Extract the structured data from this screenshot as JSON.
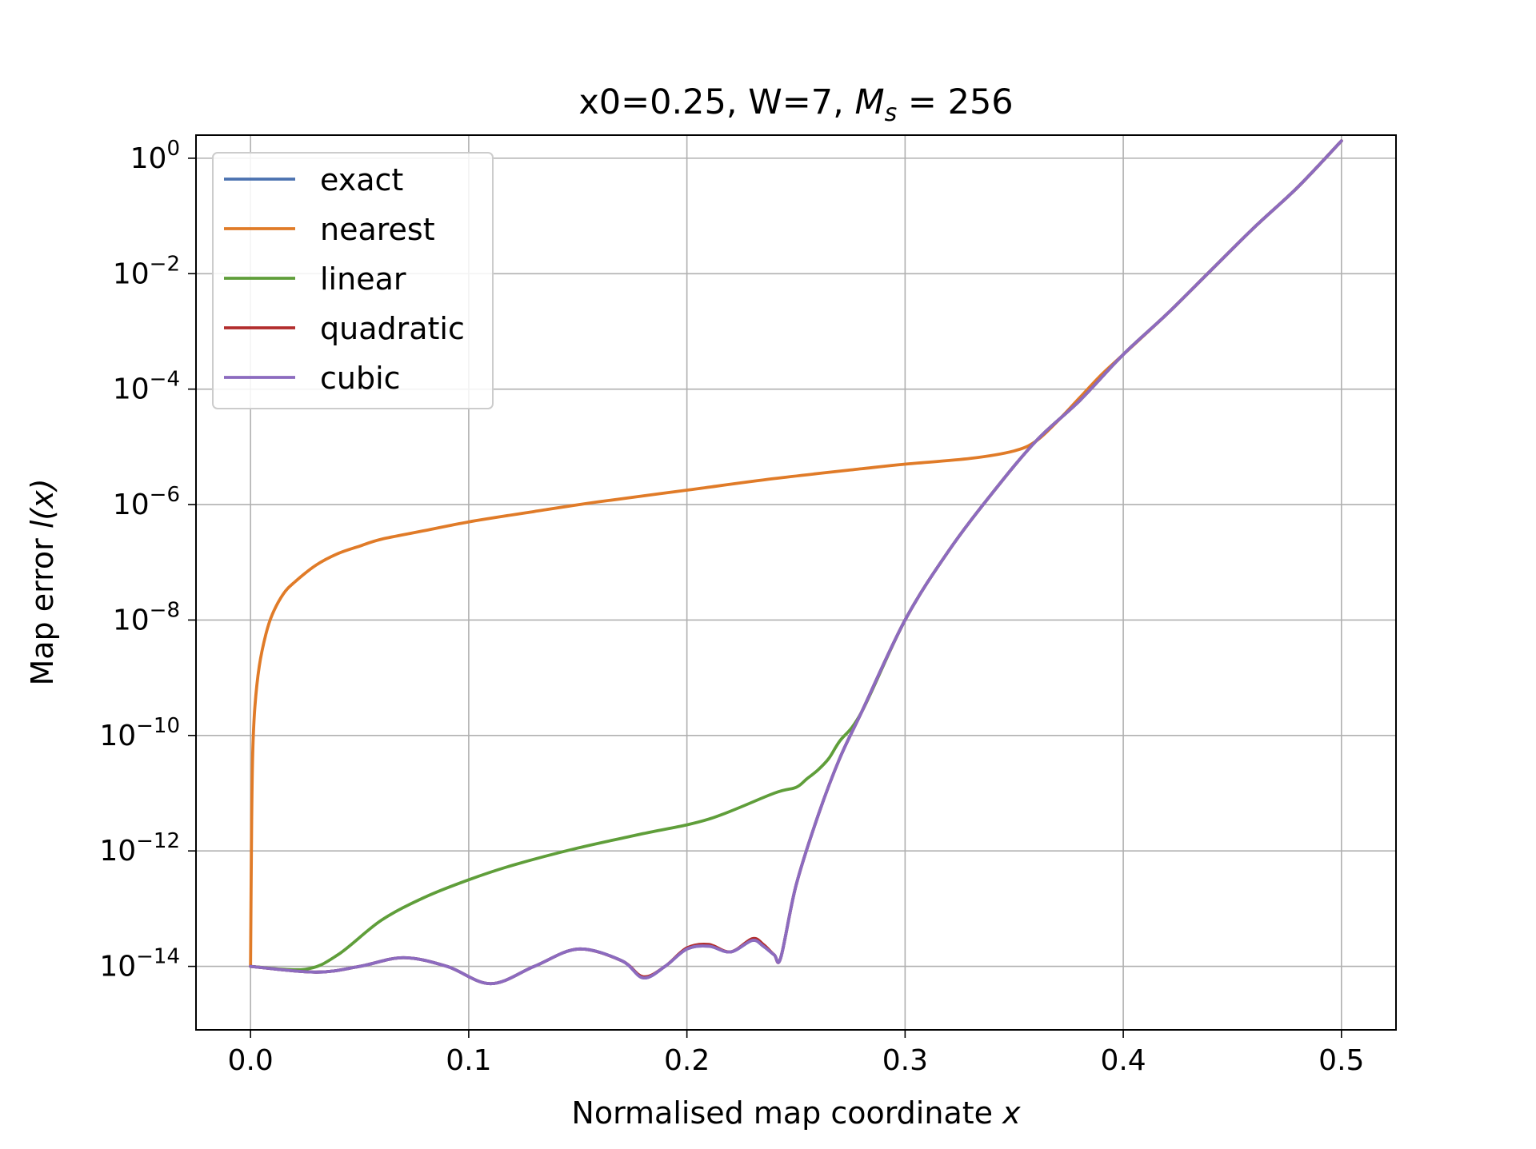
{
  "chart_data": {
    "type": "line",
    "title": {
      "prefix": "x0=0.25, W=7, ",
      "math_var": "M",
      "math_sub": "s",
      "math_rest": " = 256"
    },
    "xlabel": {
      "text": "Normalised map coordinate ",
      "math_var": "x"
    },
    "ylabel": {
      "text": "Map error ",
      "math_expr": "l(x)"
    },
    "xlim": [
      -0.025,
      0.525
    ],
    "ylim_log10": [
      -15.1,
      0.4
    ],
    "x_ticks": [
      {
        "value": 0.0,
        "label": "0.0"
      },
      {
        "value": 0.1,
        "label": "0.1"
      },
      {
        "value": 0.2,
        "label": "0.2"
      },
      {
        "value": 0.3,
        "label": "0.3"
      },
      {
        "value": 0.4,
        "label": "0.4"
      },
      {
        "value": 0.5,
        "label": "0.5"
      }
    ],
    "y_ticks": [
      {
        "exp": 0,
        "base": "10",
        "sup": "0"
      },
      {
        "exp": -2,
        "base": "10",
        "sup": "−2"
      },
      {
        "exp": -4,
        "base": "10",
        "sup": "−4"
      },
      {
        "exp": -6,
        "base": "10",
        "sup": "−6"
      },
      {
        "exp": -8,
        "base": "10",
        "sup": "−8"
      },
      {
        "exp": -10,
        "base": "10",
        "sup": "−10"
      },
      {
        "exp": -12,
        "base": "10",
        "sup": "−12"
      },
      {
        "exp": -14,
        "base": "10",
        "sup": "−14"
      }
    ],
    "grid": true,
    "legend_position": "top-left",
    "series": [
      {
        "name": "exact",
        "color": "#4c72b0",
        "x": [
          0.0,
          0.03,
          0.05,
          0.07,
          0.09,
          0.11,
          0.13,
          0.15,
          0.17,
          0.18,
          0.19,
          0.2,
          0.21,
          0.22,
          0.23,
          0.235,
          0.24,
          0.243,
          0.25,
          0.26,
          0.27,
          0.28,
          0.3,
          0.32,
          0.34,
          0.36,
          0.38,
          0.4,
          0.42,
          0.44,
          0.46,
          0.48,
          0.5
        ],
        "log10_y": [
          -14.0,
          -14.1,
          -14.0,
          -13.85,
          -14.0,
          -14.3,
          -14.0,
          -13.7,
          -13.9,
          -14.2,
          -14.0,
          -13.7,
          -13.65,
          -13.75,
          -13.55,
          -13.65,
          -13.8,
          -13.85,
          -12.6,
          -11.4,
          -10.4,
          -9.6,
          -8.0,
          -6.8,
          -5.8,
          -4.9,
          -4.2,
          -3.4,
          -2.7,
          -1.95,
          -1.2,
          -0.5,
          0.3
        ]
      },
      {
        "name": "nearest",
        "color": "#e07b28",
        "x": [
          0.0,
          0.0005,
          0.001,
          0.002,
          0.004,
          0.007,
          0.01,
          0.015,
          0.02,
          0.03,
          0.04,
          0.05,
          0.06,
          0.08,
          0.1,
          0.13,
          0.16,
          0.2,
          0.24,
          0.28,
          0.3,
          0.33,
          0.35,
          0.36,
          0.37,
          0.38,
          0.39,
          0.4,
          0.42,
          0.44,
          0.46,
          0.48,
          0.5
        ],
        "log10_y": [
          -14.0,
          -11.5,
          -10.3,
          -9.5,
          -8.8,
          -8.25,
          -7.9,
          -7.55,
          -7.35,
          -7.05,
          -6.85,
          -6.72,
          -6.6,
          -6.45,
          -6.3,
          -6.12,
          -5.95,
          -5.75,
          -5.55,
          -5.38,
          -5.3,
          -5.2,
          -5.07,
          -4.9,
          -4.55,
          -4.15,
          -3.75,
          -3.4,
          -2.7,
          -1.95,
          -1.2,
          -0.5,
          0.3
        ]
      },
      {
        "name": "linear",
        "color": "#5f9e3a",
        "x": [
          0.0,
          0.025,
          0.04,
          0.06,
          0.08,
          0.1,
          0.12,
          0.15,
          0.18,
          0.21,
          0.24,
          0.25,
          0.255,
          0.26,
          0.265,
          0.27,
          0.28,
          0.3,
          0.32,
          0.34,
          0.36,
          0.38,
          0.4,
          0.42,
          0.44,
          0.46,
          0.48,
          0.5
        ],
        "log10_y": [
          -14.0,
          -14.05,
          -13.8,
          -13.2,
          -12.8,
          -12.5,
          -12.25,
          -11.95,
          -11.7,
          -11.45,
          -11.0,
          -10.9,
          -10.75,
          -10.6,
          -10.4,
          -10.1,
          -9.6,
          -8.0,
          -6.8,
          -5.8,
          -4.9,
          -4.2,
          -3.4,
          -2.7,
          -1.95,
          -1.2,
          -0.5,
          0.3
        ]
      },
      {
        "name": "quadratic",
        "color": "#b22d2d",
        "x": [
          0.0,
          0.03,
          0.05,
          0.07,
          0.09,
          0.11,
          0.13,
          0.15,
          0.17,
          0.18,
          0.19,
          0.2,
          0.21,
          0.22,
          0.23,
          0.235,
          0.24,
          0.243,
          0.25,
          0.26,
          0.27,
          0.28,
          0.3,
          0.32,
          0.34,
          0.36,
          0.38,
          0.4,
          0.42,
          0.44,
          0.46,
          0.48,
          0.5
        ],
        "log10_y": [
          -14.0,
          -14.1,
          -14.0,
          -13.85,
          -14.0,
          -14.3,
          -14.0,
          -13.7,
          -13.9,
          -14.18,
          -14.0,
          -13.68,
          -13.62,
          -13.75,
          -13.52,
          -13.62,
          -13.8,
          -13.85,
          -12.6,
          -11.4,
          -10.4,
          -9.6,
          -8.0,
          -6.8,
          -5.8,
          -4.9,
          -4.2,
          -3.4,
          -2.7,
          -1.95,
          -1.2,
          -0.5,
          0.3
        ]
      },
      {
        "name": "cubic",
        "color": "#8c6bbf",
        "x": [
          0.0,
          0.03,
          0.05,
          0.07,
          0.09,
          0.11,
          0.13,
          0.15,
          0.17,
          0.18,
          0.19,
          0.2,
          0.21,
          0.22,
          0.23,
          0.235,
          0.24,
          0.243,
          0.25,
          0.26,
          0.27,
          0.28,
          0.3,
          0.32,
          0.34,
          0.36,
          0.38,
          0.4,
          0.42,
          0.44,
          0.46,
          0.48,
          0.5
        ],
        "log10_y": [
          -14.0,
          -14.1,
          -14.0,
          -13.85,
          -14.0,
          -14.3,
          -14.0,
          -13.7,
          -13.9,
          -14.2,
          -14.0,
          -13.7,
          -13.65,
          -13.75,
          -13.55,
          -13.65,
          -13.8,
          -13.85,
          -12.6,
          -11.4,
          -10.4,
          -9.6,
          -8.0,
          -6.8,
          -5.8,
          -4.9,
          -4.2,
          -3.4,
          -2.7,
          -1.95,
          -1.2,
          -0.5,
          0.3
        ]
      }
    ]
  }
}
